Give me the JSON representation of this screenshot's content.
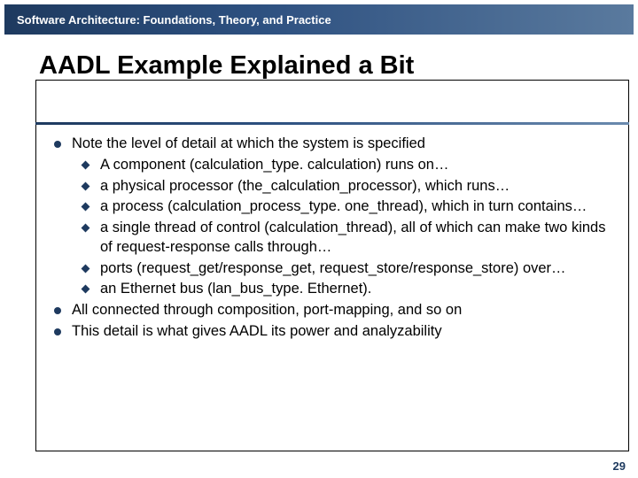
{
  "header": {
    "text": "Software Architecture: Foundations, Theory, and Practice"
  },
  "title": "AADL Example Explained a Bit",
  "bullets": [
    {
      "text": "Note the level of detail at which the system is specified",
      "sub": [
        "A component (calculation_type. calculation) runs on…",
        "a physical processor (the_calculation_processor), which runs…",
        "a process (calculation_process_type. one_thread), which in turn contains…",
        "a single thread of control (calculation_thread), all of which can make two kinds of request-response calls through…",
        "ports (request_get/response_get, request_store/response_store) over…",
        "an Ethernet bus (lan_bus_type. Ethernet)."
      ]
    },
    {
      "text": "All connected through composition, port-mapping, and so on"
    },
    {
      "text": "This detail is what gives AADL its power and analyzability"
    }
  ],
  "page_number": "29",
  "colors": {
    "band_start": "#1e3a5f",
    "band_end": "#6a8aae",
    "text": "#000000"
  }
}
